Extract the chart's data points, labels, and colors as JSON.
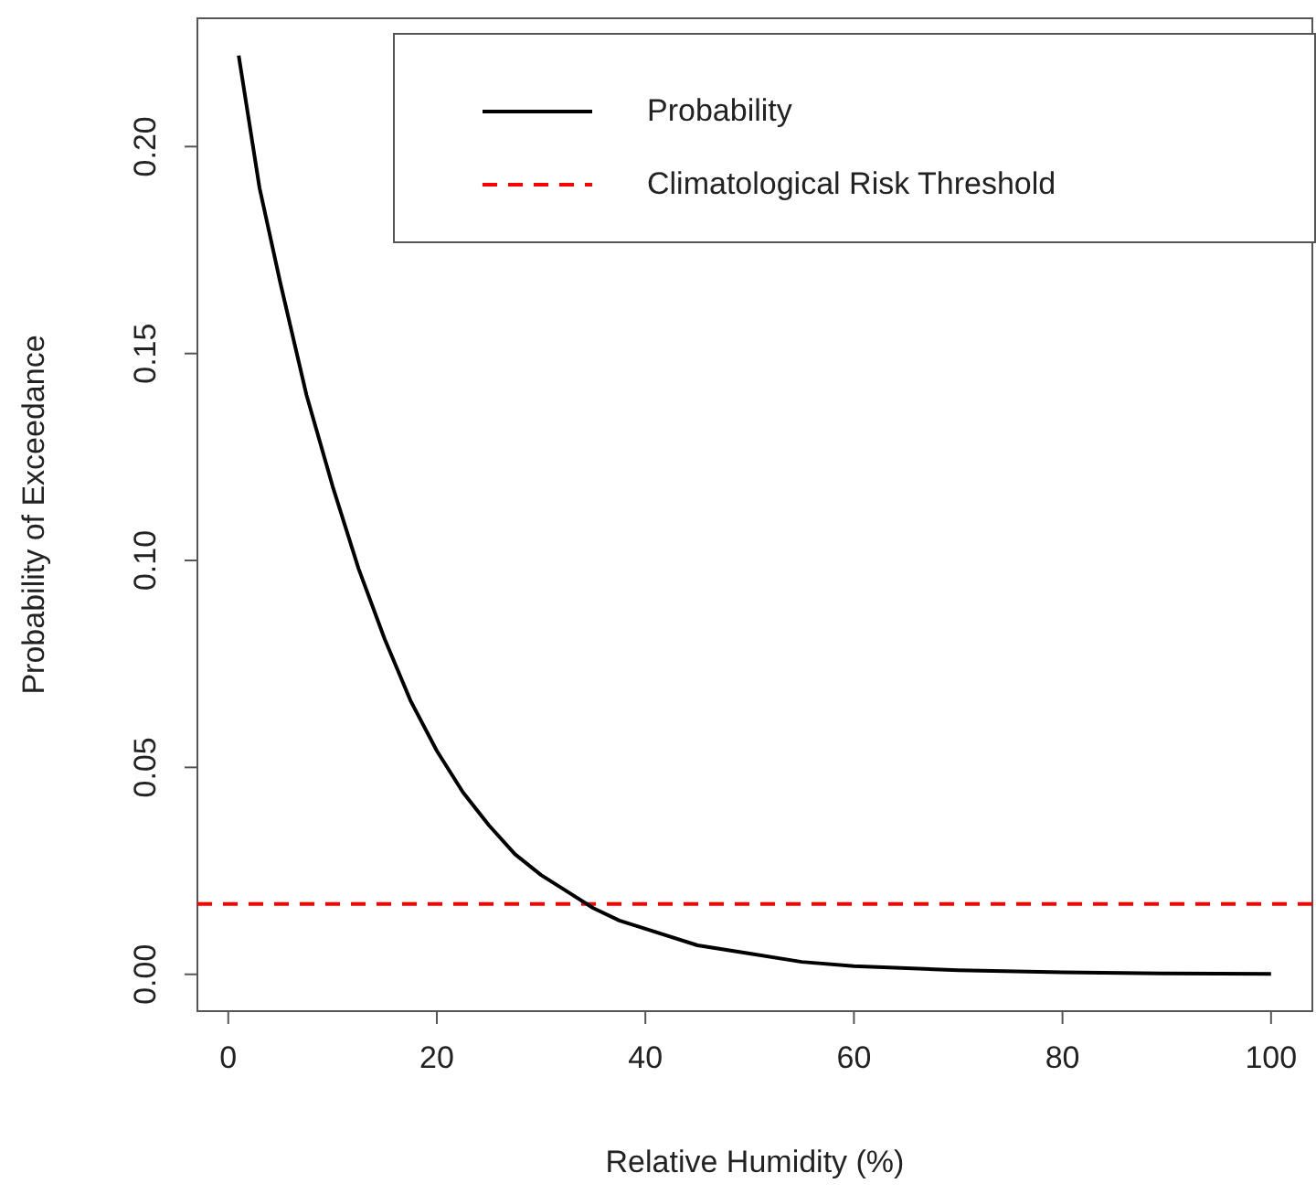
{
  "chart_data": {
    "type": "line",
    "xlabel": "Relative Humidity (%)",
    "ylabel": "Probability of Exceedance",
    "x": [
      1,
      3,
      5,
      7.5,
      10,
      12.5,
      15,
      17.5,
      20,
      22.5,
      25,
      27.5,
      30,
      32.5,
      35,
      37.5,
      40,
      45,
      50,
      55,
      60,
      70,
      80,
      90,
      100
    ],
    "series": [
      {
        "name": "Probability",
        "color": "#000000",
        "values": [
          0.222,
          0.19,
          0.167,
          0.14,
          0.118,
          0.098,
          0.081,
          0.066,
          0.054,
          0.044,
          0.036,
          0.029,
          0.024,
          0.02,
          0.016,
          0.013,
          0.011,
          0.007,
          0.005,
          0.003,
          0.002,
          0.001,
          0.0005,
          0.0002,
          0.0001
        ]
      }
    ],
    "ref_lines": [
      {
        "axis": "y",
        "value": 0.017,
        "label": "Climatological Risk Threshold",
        "color": "#ff0000",
        "line_style": "dashed"
      }
    ],
    "xlim": [
      -2.96,
      103.96
    ],
    "xticks": [
      0,
      20,
      40,
      60,
      80,
      100
    ],
    "ylim": [
      -0.0089,
      0.231
    ],
    "yticks": [
      {
        "value": 0,
        "label": "0.00"
      },
      {
        "value": 0.05,
        "label": "0.05"
      },
      {
        "value": 0.1,
        "label": "0.10"
      },
      {
        "value": 0.15,
        "label": "0.15"
      },
      {
        "value": 0.2,
        "label": "0.20"
      }
    ],
    "grid": false,
    "legend": "top right",
    "marker": "none",
    "line_style": "solid"
  }
}
